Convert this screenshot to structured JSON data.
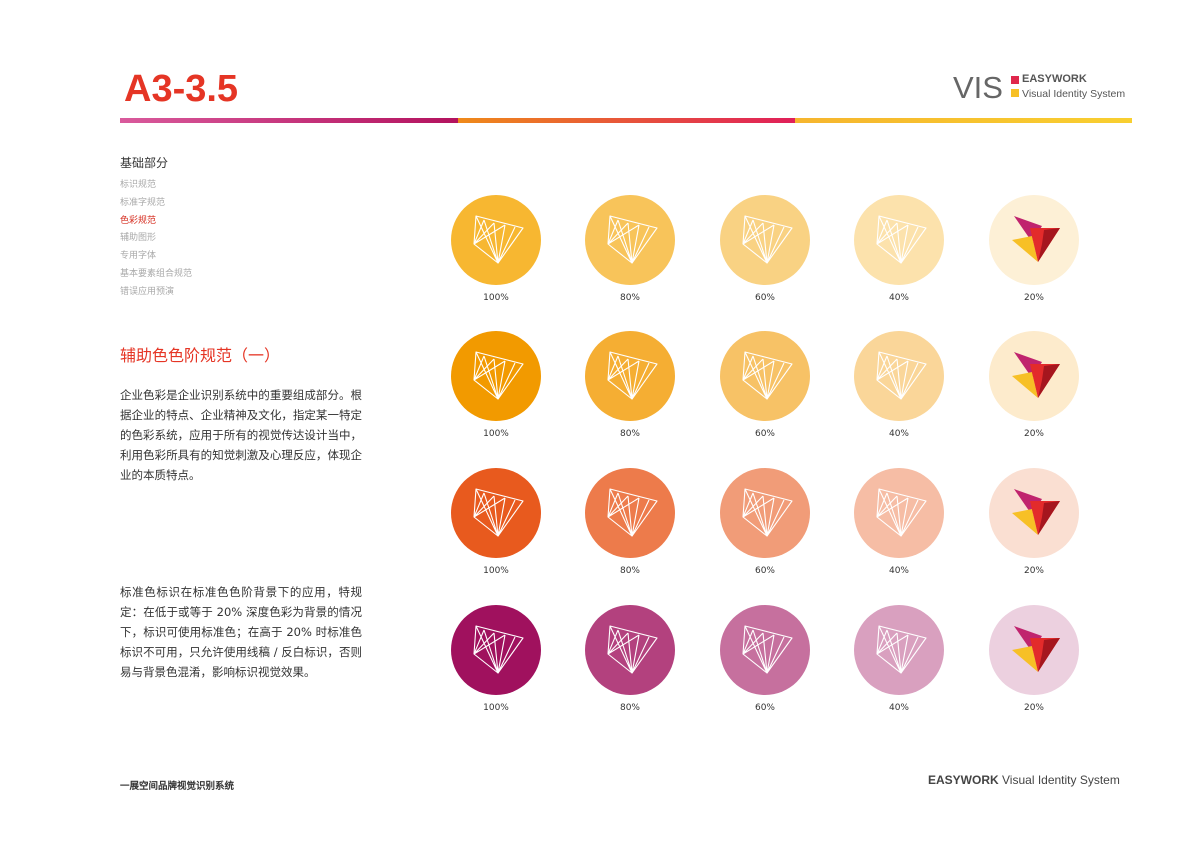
{
  "header": {
    "title": "A3-3.5",
    "brand_mark": "VIS",
    "brand_name": "EASYWORK",
    "brand_tagline": "Visual Identity System"
  },
  "nav": {
    "heading": "基础部分",
    "items": [
      "标识规范",
      "标准字规范",
      "色彩规范",
      "辅助图形",
      "专用字体",
      "基本要素组合规范",
      "错误应用预演"
    ],
    "active": 2
  },
  "section": {
    "title": "辅助色色阶规范（一）",
    "paragraphs": [
      "企业色彩是企业识别系统中的重要组成部分。根据企业的特点、企业精神及文化，指定某一特定的色彩系统，应用于所有的视觉传达设计当中，利用色彩所具有的知觉刺激及心理反应，体现企业的本质特点。",
      "标准色标识在标准色色阶背景下的应用，特规定：在低于或等于 20% 深度色彩为背景的情况下，标识可使用标准色；在高于 20% 时标准色标识不可用，只允许使用线稿 / 反白标识，否则易与背景色混淆，影响标识视觉效果。"
    ]
  },
  "swatches": {
    "rows": [
      {
        "colors": [
          "#f7b731",
          "#f8c45a",
          "#f9d283",
          "#fce2ac",
          "#fdf0d6"
        ],
        "labels": [
          "100%",
          "80%",
          "60%",
          "40%",
          "20%"
        ]
      },
      {
        "colors": [
          "#f29a00",
          "#f5ae33",
          "#f7c266",
          "#fad699",
          "#fdebcc"
        ],
        "labels": [
          "100%",
          "80%",
          "60%",
          "40%",
          "20%"
        ]
      },
      {
        "colors": [
          "#e85a1e",
          "#ed7b4b",
          "#f19c78",
          "#f6bda5",
          "#fadfd2"
        ],
        "labels": [
          "100%",
          "80%",
          "60%",
          "40%",
          "20%"
        ]
      },
      {
        "colors": [
          "#a0115e",
          "#b3417e",
          "#c6709e",
          "#d9a0bf",
          "#ecd0df"
        ],
        "labels": [
          "100%",
          "80%",
          "60%",
          "40%",
          "20%"
        ]
      }
    ]
  },
  "footer": {
    "left": "一展空间品牌视觉识别系统",
    "right_brand": "EASYWORK",
    "right_text": "Visual Identity System"
  }
}
